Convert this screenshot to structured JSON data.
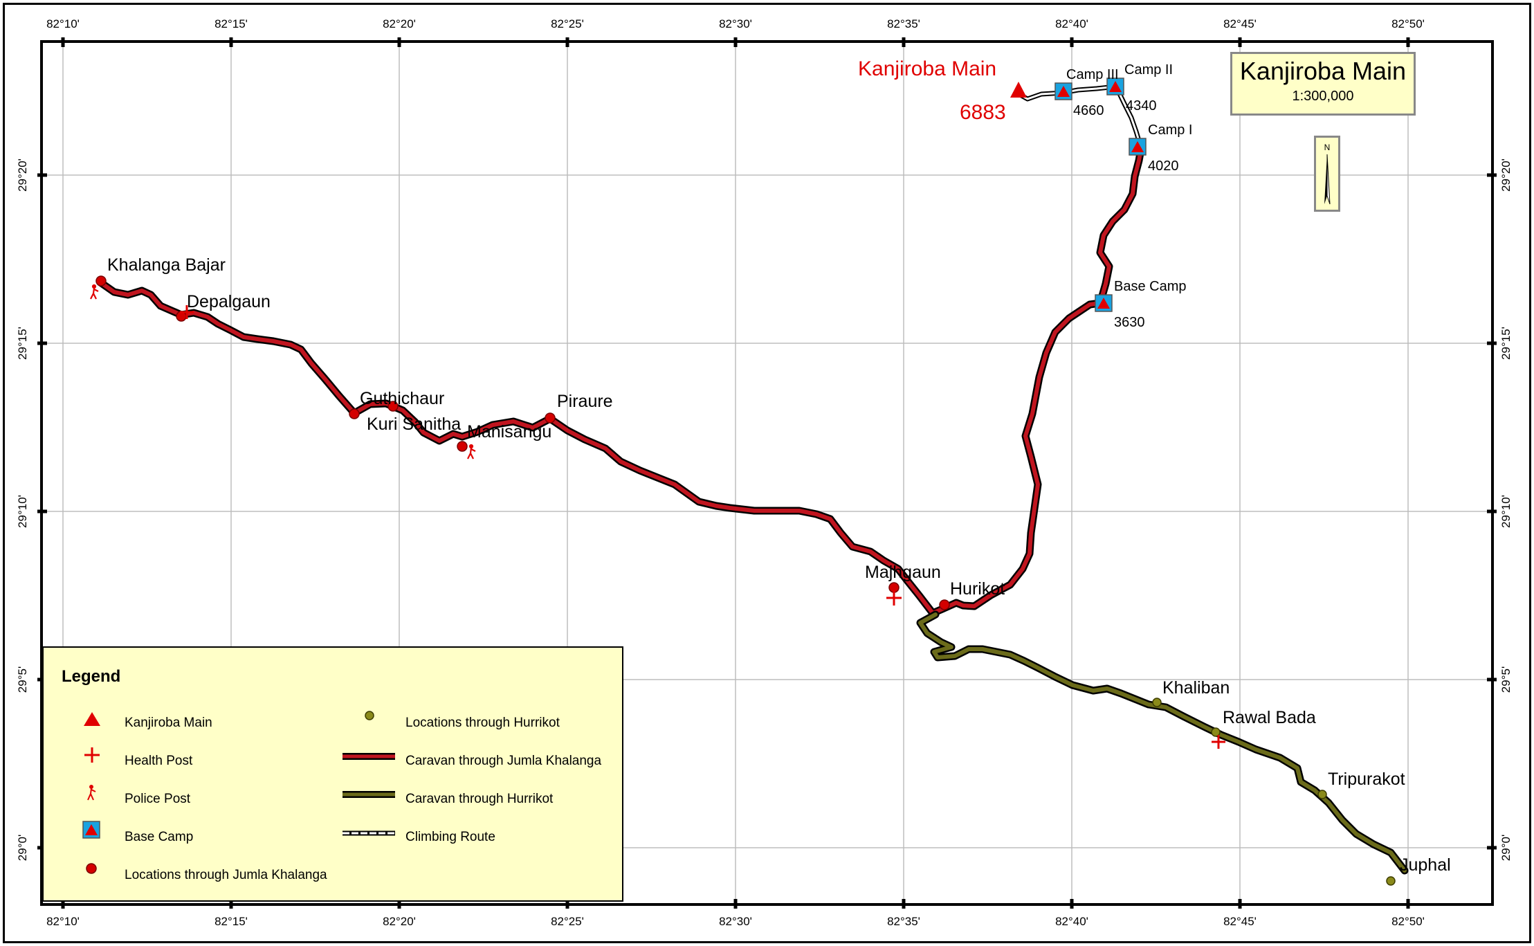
{
  "map": {
    "title": "Kanjiroba Main",
    "scale": "1:300,000",
    "north_label": "N",
    "longitude_labels": [
      "82°10'",
      "82°15'",
      "82°20'",
      "82°25'",
      "82°30'",
      "82°35'",
      "82°40'",
      "82°45'",
      "82°50'"
    ],
    "latitude_labels": [
      "29°20'",
      "29°15'",
      "29°10'",
      "29°5'",
      "29°0'"
    ],
    "colors": {
      "jumla_route": "#c0151f",
      "hurrikot_route": "#6b6b1a",
      "marker_red": "#e00000",
      "base_camp_blue": "#1aa3e0",
      "legend_bg": "#ffffc8"
    }
  },
  "peak": {
    "name": "Kanjiroba Main",
    "elevation": "6883"
  },
  "camps": [
    {
      "name": "Camp III",
      "elevation": "4660"
    },
    {
      "name": "Camp II",
      "elevation": "4340"
    },
    {
      "name": "Camp I",
      "elevation": "4020"
    },
    {
      "name": "Base Camp",
      "elevation": "3630"
    }
  ],
  "places": {
    "khalanga_bajar": "Khalanga Bajar",
    "depalgaun": "Depalgaun",
    "guthichaur": "Guthichaur",
    "kuri_sanitha": "Kuri Sanitha",
    "manisangu": "Manisangu",
    "piraure": "Piraure",
    "majhgaun": "Majhgaun",
    "hurikot": "Hurikot",
    "khaliban": "Khaliban",
    "rawal_bada": "Rawal Bada",
    "tripurakot": "Tripurakot",
    "juphal": "Juphal"
  },
  "legend": {
    "title": "Legend",
    "items": [
      {
        "label": "Kanjiroba Main",
        "symbol": "triangle-icon"
      },
      {
        "label": "Health Post",
        "symbol": "cross-icon"
      },
      {
        "label": "Police Post",
        "symbol": "police-icon"
      },
      {
        "label": "Base Camp",
        "symbol": "tent-icon"
      },
      {
        "label": "Locations through Jumla Khalanga",
        "symbol": "red-dot-icon"
      },
      {
        "label": "Locations through Hurrikot",
        "symbol": "olive-dot-icon"
      },
      {
        "label": "Caravan through Jumla Khalanga",
        "symbol": "red-line-icon"
      },
      {
        "label": "Caravan through Hurrikot",
        "symbol": "olive-line-icon"
      },
      {
        "label": "Climbing Route",
        "symbol": "dashed-line-icon"
      }
    ]
  }
}
